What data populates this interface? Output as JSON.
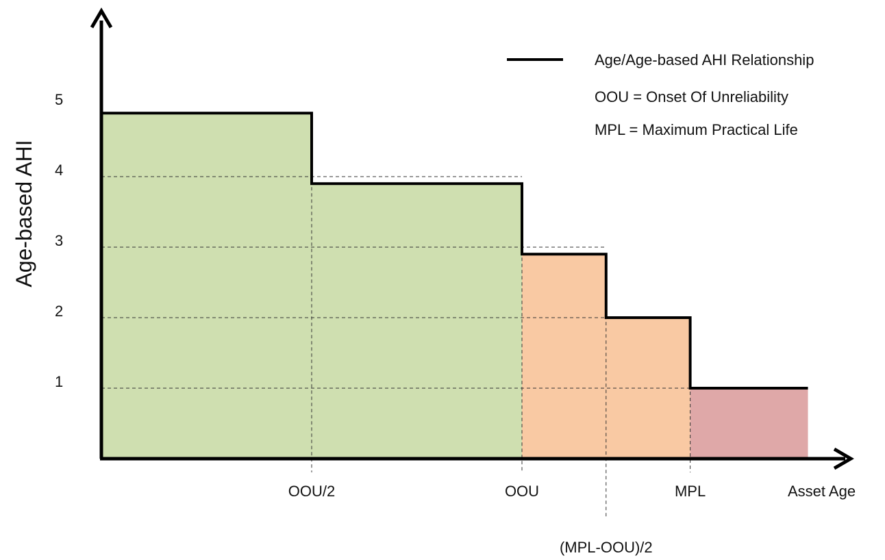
{
  "chart_data": {
    "type": "area",
    "ylabel": "Age-based AHI",
    "xlabel": "Asset Age",
    "yticks": [
      "1",
      "2",
      "3",
      "4",
      "5"
    ],
    "xticks": [
      {
        "label": "OOU/2",
        "x": 0.5
      },
      {
        "label": "OOU",
        "x": 1.0
      },
      {
        "label": "(MPL-OOU)/2",
        "x": 1.2
      },
      {
        "label": "MPL",
        "x": 1.4
      }
    ],
    "ylim": [
      0,
      5.5
    ],
    "xlim": [
      0,
      1.9
    ],
    "grid": "dashed at tick positions",
    "steps": [
      {
        "x_start": 0.0,
        "x_end": 0.5,
        "y": 4.9
      },
      {
        "x_start": 0.5,
        "x_end": 1.0,
        "y": 3.9
      },
      {
        "x_start": 1.0,
        "x_end": 1.2,
        "y": 2.9
      },
      {
        "x_start": 1.2,
        "x_end": 1.4,
        "y": 2.0
      },
      {
        "x_start": 1.4,
        "x_end": 1.68,
        "y": 1.0
      }
    ],
    "regions": [
      {
        "x_start": 0.0,
        "x_end": 1.0,
        "color": "#cfdfb0"
      },
      {
        "x_start": 1.0,
        "x_end": 1.4,
        "color": "#f9c9a3"
      },
      {
        "x_start": 1.4,
        "x_end": 1.68,
        "color": "#dfa8a8"
      }
    ],
    "legend": {
      "position": "top-right",
      "line_label": "Age/Age-based AHI Relationship",
      "notes": [
        "OOU = Onset Of Unreliability",
        "MPL = Maximum Practical Life"
      ]
    }
  }
}
